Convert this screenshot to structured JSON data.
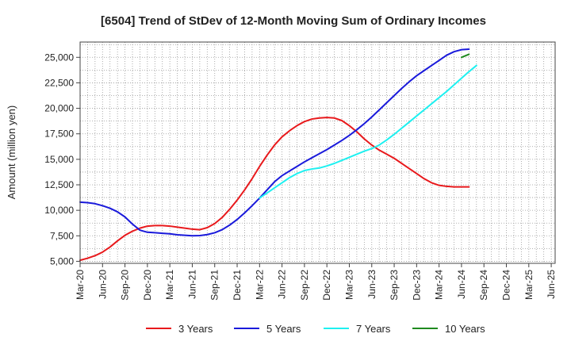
{
  "chart_data": {
    "type": "line",
    "title": "[6504]  Trend of StDev of 12-Month Moving Sum of Ordinary Incomes",
    "xlabel": "",
    "ylabel": "Amount (million yen)",
    "ylim": [
      4800,
      26500
    ],
    "yticks": [
      5000,
      7500,
      10000,
      12500,
      15000,
      17500,
      20000,
      22500,
      25000
    ],
    "ytick_labels": [
      "5,000",
      "7,500",
      "10,000",
      "12,500",
      "15,000",
      "17,500",
      "20,000",
      "22,500",
      "25,000"
    ],
    "x_ticks": [
      "Mar-20",
      "Jun-20",
      "Sep-20",
      "Dec-20",
      "Mar-21",
      "Jun-21",
      "Sep-21",
      "Dec-21",
      "Mar-22",
      "Jun-22",
      "Sep-22",
      "Dec-22",
      "Mar-23",
      "Jun-23",
      "Sep-23",
      "Dec-23",
      "Mar-24",
      "Jun-24",
      "Sep-24",
      "Dec-24",
      "Mar-25",
      "Jun-25"
    ],
    "grid": true,
    "legend_position": "bottom",
    "series": [
      {
        "name": "3 Years",
        "color": "#e8191c",
        "start_index": 0,
        "values": [
          5100,
          5300,
          5550,
          5900,
          6400,
          7000,
          7550,
          7950,
          8250,
          8450,
          8500,
          8500,
          8450,
          8350,
          8250,
          8150,
          8100,
          8300,
          8700,
          9300,
          10100,
          11000,
          12000,
          13100,
          14300,
          15400,
          16400,
          17200,
          17800,
          18300,
          18700,
          18950,
          19050,
          19100,
          19050,
          18800,
          18300,
          17700,
          17000,
          16400,
          15900,
          15500,
          15100,
          14600,
          14100,
          13600,
          13100,
          12700,
          12450,
          12350,
          12300,
          12300,
          12300
        ]
      },
      {
        "name": "5 Years",
        "color": "#1a1adb",
        "start_index": 0,
        "values": [
          10800,
          10750,
          10650,
          10450,
          10200,
          9850,
          9350,
          8650,
          8050,
          7850,
          7800,
          7750,
          7700,
          7600,
          7550,
          7500,
          7520,
          7620,
          7800,
          8100,
          8550,
          9100,
          9750,
          10450,
          11200,
          12000,
          12800,
          13400,
          13850,
          14300,
          14750,
          15150,
          15550,
          15950,
          16400,
          16850,
          17350,
          17900,
          18500,
          19150,
          19850,
          20550,
          21250,
          21950,
          22600,
          23200,
          23700,
          24200,
          24700,
          25200,
          25550,
          25750,
          25800
        ]
      },
      {
        "name": "7 Years",
        "color": "#1ef0f0",
        "start_index": 24,
        "values": [
          11200,
          11700,
          12200,
          12700,
          13200,
          13600,
          13900,
          14050,
          14150,
          14350,
          14600,
          14900,
          15200,
          15500,
          15800,
          16050,
          16400,
          16900,
          17450,
          18050,
          18650,
          19250,
          19850,
          20450,
          21050,
          21650,
          22300,
          22950,
          23600,
          24200
        ]
      },
      {
        "name": "10 Years",
        "color": "#1f8a1f",
        "start_index": 51,
        "values": [
          25000,
          25300
        ]
      }
    ]
  }
}
